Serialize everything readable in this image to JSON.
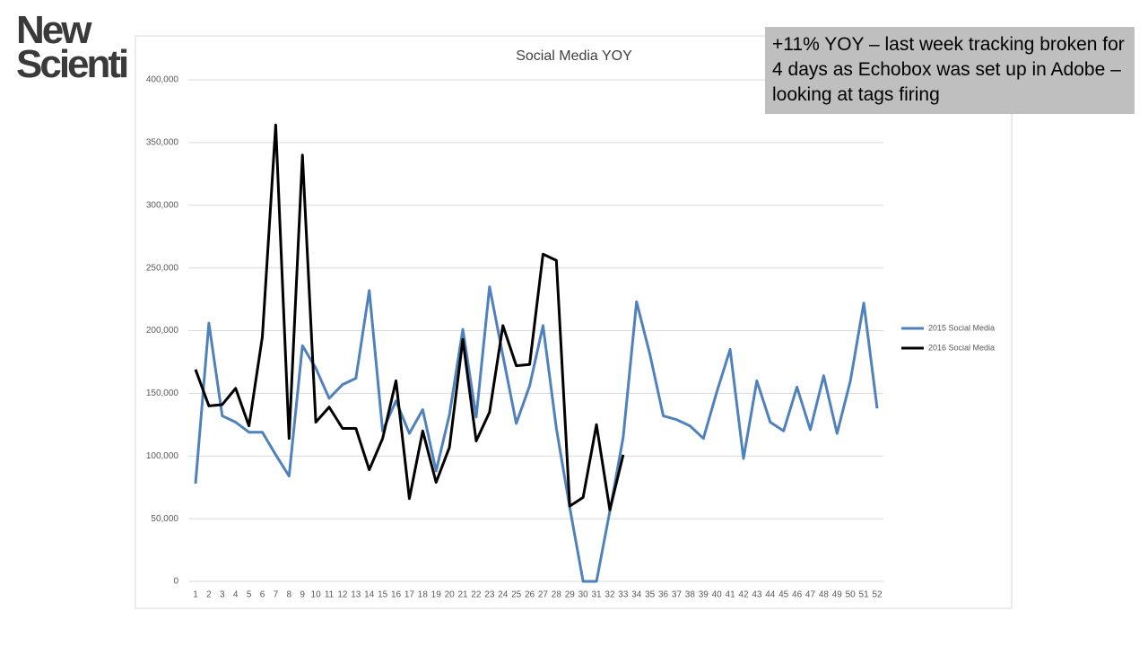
{
  "logo": [
    "New",
    "Scienti"
  ],
  "chart_data": {
    "type": "line",
    "title": "Social Media YOY",
    "annotation": "+11% YOY – last week tracking broken for 4 days as Echobox was set up in Adobe – looking at tags firing",
    "categories": [
      "1",
      "2",
      "3",
      "4",
      "5",
      "6",
      "7",
      "8",
      "9",
      "10",
      "11",
      "12",
      "13",
      "14",
      "15",
      "16",
      "17",
      "18",
      "19",
      "20",
      "21",
      "22",
      "23",
      "24",
      "25",
      "26",
      "27",
      "28",
      "29",
      "30",
      "31",
      "32",
      "33",
      "34",
      "35",
      "36",
      "37",
      "38",
      "39",
      "40",
      "41",
      "42",
      "43",
      "44",
      "45",
      "46",
      "47",
      "48",
      "49",
      "50",
      "51",
      "52"
    ],
    "series": [
      {
        "name": "2015 Social Media",
        "color": "#4f81bd",
        "values": [
          78000,
          206000,
          132000,
          127000,
          119000,
          119000,
          101000,
          84000,
          188000,
          170000,
          146000,
          157000,
          162000,
          232000,
          120000,
          144000,
          118000,
          137000,
          88000,
          133000,
          201000,
          131000,
          235000,
          180000,
          126000,
          156000,
          204000,
          122000,
          59000,
          0,
          0,
          56000,
          115000,
          223000,
          181000,
          132000,
          129000,
          124000,
          114000,
          151000,
          185000,
          98000,
          160000,
          127000,
          120000,
          155000,
          121000,
          164000,
          118000,
          160000,
          222000,
          138000
        ]
      },
      {
        "name": "2016 Social Media",
        "color": "#000000",
        "values": [
          169000,
          140000,
          141000,
          154000,
          124000,
          195000,
          364000,
          114000,
          340000,
          127000,
          139000,
          122000,
          122000,
          89000,
          114000,
          160000,
          66000,
          120000,
          79000,
          107000,
          193000,
          112000,
          135000,
          204000,
          172000,
          173000,
          261000,
          256000,
          60000,
          67000,
          125000,
          57000,
          101000,
          null,
          null,
          null,
          null,
          null,
          null,
          null,
          null,
          null,
          null,
          null,
          null,
          null,
          null,
          null,
          null,
          null,
          null,
          null
        ]
      }
    ],
    "ylim": [
      0,
      400000
    ],
    "yticks": [
      0,
      {
        "value": 50000,
        "label": "50,000"
      },
      {
        "value": 100000,
        "label": "100,000"
      },
      {
        "value": 150000,
        "label": "150,000"
      },
      {
        "value": 200000,
        "label": "200,000"
      },
      {
        "value": 250000,
        "label": "250,000"
      },
      {
        "value": 300000,
        "label": "300,000"
      },
      {
        "value": 350000,
        "label": "350,000"
      },
      {
        "value": 400000,
        "label": "400,000"
      }
    ],
    "grid": true,
    "legend": "right"
  }
}
